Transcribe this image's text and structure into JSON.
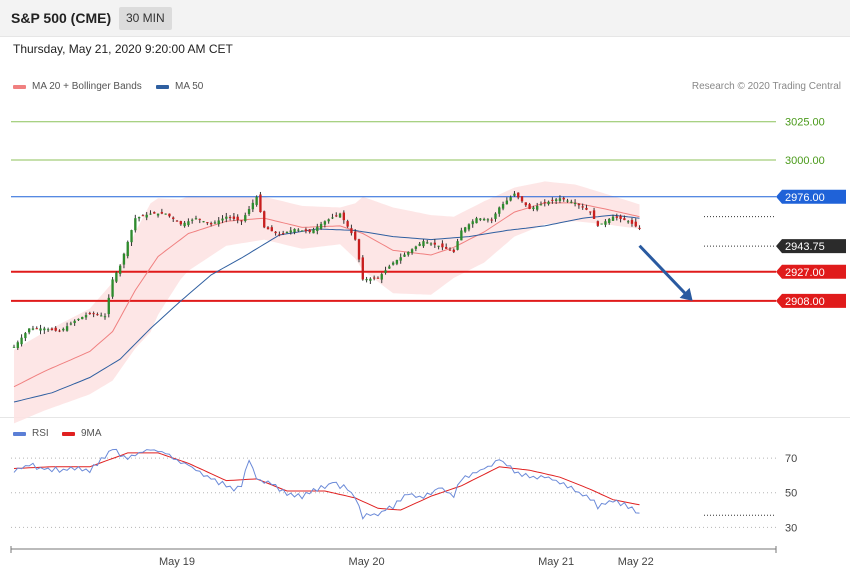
{
  "header": {
    "title": "S&P 500 (CME)",
    "timeframe": "30 MIN",
    "datetime": "Thursday, May 21, 2020 9:20:00 AM CET"
  },
  "legend": {
    "main": [
      {
        "label": "MA 20 + Bollinger Bands",
        "color": "#f08080"
      },
      {
        "label": "MA 50",
        "color": "#2f5fa0"
      }
    ],
    "rsi": [
      {
        "label": "RSI",
        "color": "#5b7fd6"
      },
      {
        "label": "9MA",
        "color": "#e02020"
      }
    ]
  },
  "credit": "Research © 2020 Trading Central",
  "colors": {
    "bull": "#2e8b2e",
    "bear": "#c81e1e",
    "support": "#e01b1b",
    "resistance": "#1f62d8",
    "target_line": "#8cc25a",
    "bb_fill": "#fde2e2",
    "ma20": "#f08080",
    "ma50": "#2f5fa0",
    "arrow": "#2a5aa0",
    "current": "#2b2b2b",
    "rsi": "#6b8ad8",
    "rsi_ma": "#e02020"
  },
  "chart_data": [
    {
      "type": "candlestick",
      "ylim": [
        2842,
        3047
      ],
      "xlim": [
        0,
        182
      ],
      "x_ticks": [
        {
          "x": 43,
          "label": "May 19"
        },
        {
          "x": 93,
          "label": "May 20"
        },
        {
          "x": 143,
          "label": "May 21"
        },
        {
          "x": 164,
          "label": "May 22"
        }
      ],
      "levels": [
        {
          "value": 3025,
          "label": "3025.00",
          "kind": "target"
        },
        {
          "value": 3000,
          "label": "3000.00",
          "kind": "target"
        },
        {
          "value": 2976,
          "label": "2976.00",
          "kind": "resistance"
        },
        {
          "value": 2927,
          "label": "2927.00",
          "kind": "support"
        },
        {
          "value": 2908,
          "label": "2908.00",
          "kind": "support"
        }
      ],
      "current_price": {
        "value": 2943.75,
        "label": "2943.75"
      },
      "forecast_arrow": {
        "from": [
          165,
          2944
        ],
        "to": [
          179,
          2908
        ]
      },
      "anchors": [
        [
          0,
          2878
        ],
        [
          4,
          2890
        ],
        [
          8,
          2890
        ],
        [
          12,
          2888
        ],
        [
          16,
          2895
        ],
        [
          20,
          2900
        ],
        [
          24,
          2898
        ],
        [
          26,
          2922
        ],
        [
          28,
          2931
        ],
        [
          32,
          2962
        ],
        [
          36,
          2965
        ],
        [
          40,
          2965
        ],
        [
          44,
          2958
        ],
        [
          48,
          2962
        ],
        [
          52,
          2958
        ],
        [
          56,
          2963
        ],
        [
          60,
          2960
        ],
        [
          64,
          2976
        ],
        [
          66,
          2956
        ],
        [
          70,
          2951
        ],
        [
          74,
          2955
        ],
        [
          78,
          2953
        ],
        [
          82,
          2960
        ],
        [
          86,
          2965
        ],
        [
          90,
          2948
        ],
        [
          92,
          2922
        ],
        [
          96,
          2923
        ],
        [
          100,
          2933
        ],
        [
          104,
          2940
        ],
        [
          108,
          2947
        ],
        [
          112,
          2944
        ],
        [
          116,
          2940
        ],
        [
          118,
          2954
        ],
        [
          122,
          2962
        ],
        [
          126,
          2961
        ],
        [
          128,
          2969
        ],
        [
          132,
          2978
        ],
        [
          136,
          2968
        ],
        [
          140,
          2972
        ],
        [
          144,
          2975
        ],
        [
          148,
          2972
        ],
        [
          152,
          2966
        ],
        [
          154,
          2957
        ],
        [
          158,
          2963
        ],
        [
          162,
          2960
        ],
        [
          165,
          2955
        ]
      ],
      "ma20_anchors": [
        [
          0,
          2852
        ],
        [
          8,
          2862
        ],
        [
          20,
          2875
        ],
        [
          26,
          2888
        ],
        [
          32,
          2915
        ],
        [
          38,
          2937
        ],
        [
          46,
          2952
        ],
        [
          56,
          2960
        ],
        [
          66,
          2962
        ],
        [
          76,
          2956
        ],
        [
          86,
          2957
        ],
        [
          92,
          2952
        ],
        [
          100,
          2941
        ],
        [
          110,
          2938
        ],
        [
          116,
          2943
        ],
        [
          124,
          2953
        ],
        [
          132,
          2966
        ],
        [
          140,
          2972
        ],
        [
          148,
          2972
        ],
        [
          156,
          2968
        ],
        [
          165,
          2963
        ]
      ],
      "ma50_anchors": [
        [
          0,
          2842
        ],
        [
          10,
          2848
        ],
        [
          20,
          2858
        ],
        [
          28,
          2870
        ],
        [
          36,
          2890
        ],
        [
          44,
          2908
        ],
        [
          52,
          2925
        ],
        [
          60,
          2936
        ],
        [
          70,
          2951
        ],
        [
          80,
          2955
        ],
        [
          90,
          2954
        ],
        [
          100,
          2950
        ],
        [
          110,
          2948
        ],
        [
          120,
          2950
        ],
        [
          130,
          2954
        ],
        [
          140,
          2957
        ],
        [
          150,
          2962
        ],
        [
          158,
          2964
        ],
        [
          165,
          2962
        ]
      ],
      "bb_width_anchors": [
        [
          0,
          24
        ],
        [
          10,
          26
        ],
        [
          20,
          28
        ],
        [
          26,
          32
        ],
        [
          32,
          38
        ],
        [
          36,
          42
        ],
        [
          44,
          26
        ],
        [
          56,
          16
        ],
        [
          66,
          14
        ],
        [
          76,
          14
        ],
        [
          86,
          12
        ],
        [
          90,
          18
        ],
        [
          92,
          24
        ],
        [
          100,
          28
        ],
        [
          110,
          26
        ],
        [
          116,
          20
        ],
        [
          124,
          20
        ],
        [
          132,
          16
        ],
        [
          140,
          14
        ],
        [
          148,
          12
        ],
        [
          156,
          10
        ],
        [
          165,
          8
        ]
      ]
    },
    {
      "type": "line",
      "series": [
        {
          "name": "RSI"
        },
        {
          "name": "9MA"
        }
      ],
      "ylim": [
        25,
        77
      ],
      "y_ticks": [
        {
          "value": 70,
          "label": "70"
        },
        {
          "value": 50,
          "label": "50"
        },
        {
          "value": 30,
          "label": "30"
        }
      ],
      "rsi_anchors": [
        [
          0,
          63
        ],
        [
          4,
          66
        ],
        [
          8,
          64
        ],
        [
          12,
          63
        ],
        [
          16,
          64
        ],
        [
          20,
          63
        ],
        [
          22,
          67
        ],
        [
          24,
          71
        ],
        [
          26,
          75
        ],
        [
          30,
          70
        ],
        [
          34,
          74
        ],
        [
          36,
          75
        ],
        [
          40,
          73
        ],
        [
          42,
          70
        ],
        [
          46,
          66
        ],
        [
          50,
          60
        ],
        [
          52,
          58
        ],
        [
          54,
          56
        ],
        [
          58,
          52
        ],
        [
          60,
          55
        ],
        [
          62,
          69
        ],
        [
          64,
          58
        ],
        [
          68,
          55
        ],
        [
          72,
          49
        ],
        [
          76,
          48
        ],
        [
          80,
          52
        ],
        [
          84,
          56
        ],
        [
          88,
          52
        ],
        [
          90,
          48
        ],
        [
          92,
          36
        ],
        [
          96,
          38
        ],
        [
          100,
          42
        ],
        [
          104,
          50
        ],
        [
          108,
          47
        ],
        [
          112,
          53
        ],
        [
          116,
          48
        ],
        [
          118,
          58
        ],
        [
          122,
          62
        ],
        [
          126,
          66
        ],
        [
          128,
          70
        ],
        [
          132,
          62
        ],
        [
          136,
          59
        ],
        [
          140,
          60
        ],
        [
          144,
          56
        ],
        [
          148,
          51
        ],
        [
          152,
          47
        ],
        [
          154,
          42
        ],
        [
          158,
          45
        ],
        [
          162,
          42
        ],
        [
          165,
          37
        ]
      ],
      "rsi_ma_anchors": [
        [
          0,
          64
        ],
        [
          10,
          65
        ],
        [
          20,
          65
        ],
        [
          30,
          73
        ],
        [
          38,
          73
        ],
        [
          46,
          67
        ],
        [
          56,
          57
        ],
        [
          64,
          58
        ],
        [
          72,
          51
        ],
        [
          82,
          51
        ],
        [
          90,
          47
        ],
        [
          96,
          41
        ],
        [
          102,
          40
        ],
        [
          110,
          48
        ],
        [
          118,
          54
        ],
        [
          128,
          65
        ],
        [
          136,
          63
        ],
        [
          144,
          59
        ],
        [
          152,
          52
        ],
        [
          158,
          46
        ],
        [
          165,
          43
        ]
      ]
    }
  ]
}
